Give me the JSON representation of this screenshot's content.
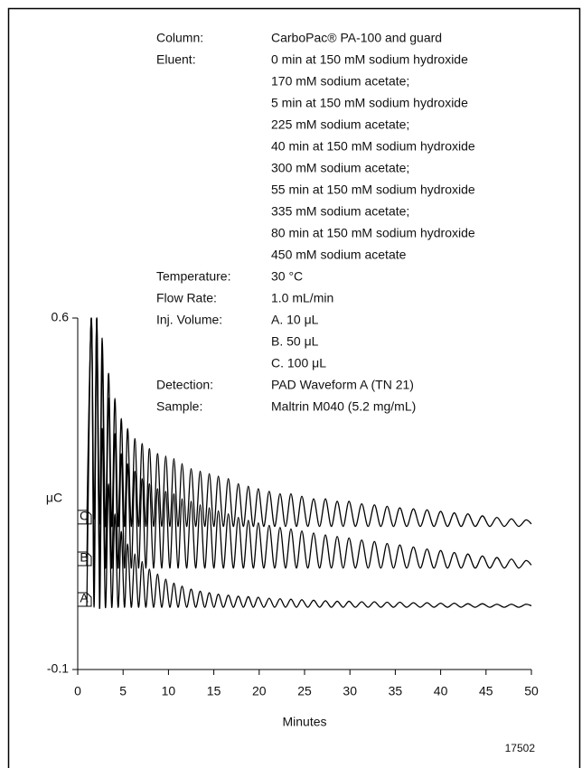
{
  "chart_data": {
    "type": "line",
    "xlabel": "Minutes",
    "ylabel": "μC",
    "figure_id": "17502",
    "xlim": [
      0,
      50
    ],
    "ylim": [
      -0.1,
      0.6
    ],
    "xticks": [
      0,
      5,
      10,
      15,
      20,
      25,
      30,
      35,
      40,
      45,
      50
    ],
    "yticks": [
      -0.1,
      0.6
    ],
    "color": "#000000",
    "conditions": [
      {
        "label": "Column:",
        "lines": [
          "CarboPac® PA-100 and guard"
        ]
      },
      {
        "label": "Eluent:",
        "lines": [
          "0 min at 150 mM sodium hydroxide",
          "170 mM sodium acetate;",
          "5 min at 150 mM sodium hydroxide",
          "225 mM sodium acetate;",
          "40 min at 150 mM sodium hydroxide",
          "300 mM sodium acetate;",
          "55 min at 150 mM sodium hydroxide",
          "335 mM sodium acetate;",
          "80 min at 150 mM sodium hydroxide",
          "450 mM sodium acetate"
        ]
      },
      {
        "label": "Temperature:",
        "lines": [
          "30 °C"
        ]
      },
      {
        "label": "Flow Rate:",
        "lines": [
          "1.0 mL/min"
        ]
      },
      {
        "label": "Inj. Volume:",
        "lines": [
          "A. 10 μL",
          "B. 50 μL",
          "C. 100 μL"
        ]
      },
      {
        "label": "Detection:",
        "lines": [
          "PAD Waveform A (TN 21)"
        ]
      },
      {
        "label": "Sample:",
        "lines": [
          "Maltrin M040 (5.2 mg/mL)"
        ]
      }
    ],
    "x": [
      1.0,
      1.5,
      1.8,
      2.1,
      2.4,
      2.7,
      3.05,
      3.4,
      3.75,
      4.1,
      4.45,
      4.8,
      5.15,
      5.5,
      5.9,
      6.3,
      6.7,
      7.1,
      7.5,
      7.9,
      8.35,
      8.8,
      9.25,
      9.7,
      10.15,
      10.6,
      11.05,
      11.5,
      12.0,
      12.5,
      13.0,
      13.5,
      14.0,
      14.5,
      15.0,
      15.5,
      16.05,
      16.6,
      17.15,
      17.7,
      18.25,
      18.8,
      19.35,
      19.9,
      20.5,
      21.1,
      21.7,
      22.3,
      22.9,
      23.5,
      24.1,
      24.7,
      25.35,
      26.0,
      26.65,
      27.3,
      27.95,
      28.6,
      29.25,
      29.9,
      30.6,
      31.3,
      32.0,
      32.7,
      33.4,
      34.1,
      34.8,
      35.5,
      36.25,
      37.0,
      37.75,
      38.5,
      39.25,
      40.0,
      40.75,
      41.5,
      42.25,
      43.0,
      43.8,
      44.6,
      45.4,
      46.2,
      47.0,
      47.8,
      48.6,
      49.4,
      50
    ],
    "series": [
      {
        "name": "A",
        "values": [
          0.026,
          0.6,
          0.024,
          0.6,
          0.024,
          0.38,
          0.024,
          0.27,
          0.024,
          0.21,
          0.024,
          0.175,
          0.024,
          0.15,
          0.024,
          0.13,
          0.024,
          0.115,
          0.024,
          0.1,
          0.024,
          0.09,
          0.024,
          0.08,
          0.024,
          0.072,
          0.024,
          0.066,
          0.024,
          0.06,
          0.024,
          0.056,
          0.024,
          0.053,
          0.024,
          0.05,
          0.024,
          0.048,
          0.024,
          0.046,
          0.024,
          0.045,
          0.024,
          0.044,
          0.024,
          0.042,
          0.024,
          0.041,
          0.024,
          0.04,
          0.024,
          0.039,
          0.024,
          0.038,
          0.024,
          0.037,
          0.024,
          0.036,
          0.024,
          0.036,
          0.024,
          0.035,
          0.024,
          0.035,
          0.024,
          0.034,
          0.024,
          0.034,
          0.024,
          0.033,
          0.024,
          0.033,
          0.024,
          0.032,
          0.024,
          0.032,
          0.024,
          0.031,
          0.024,
          0.031,
          0.024,
          0.03,
          0.024,
          0.03,
          0.024,
          0.03,
          0.027
        ]
      },
      {
        "name": "B",
        "values": [
          0.107,
          0.6,
          0.102,
          0.6,
          0.102,
          0.52,
          0.102,
          0.44,
          0.102,
          0.37,
          0.102,
          0.33,
          0.102,
          0.31,
          0.102,
          0.295,
          0.102,
          0.28,
          0.102,
          0.27,
          0.102,
          0.26,
          0.102,
          0.255,
          0.102,
          0.25,
          0.102,
          0.24,
          0.102,
          0.235,
          0.102,
          0.228,
          0.102,
          0.222,
          0.102,
          0.216,
          0.102,
          0.21,
          0.102,
          0.203,
          0.102,
          0.197,
          0.102,
          0.192,
          0.102,
          0.187,
          0.102,
          0.183,
          0.102,
          0.18,
          0.102,
          0.176,
          0.102,
          0.172,
          0.102,
          0.168,
          0.102,
          0.165,
          0.102,
          0.162,
          0.102,
          0.158,
          0.102,
          0.155,
          0.102,
          0.151,
          0.102,
          0.148,
          0.102,
          0.144,
          0.102,
          0.14,
          0.102,
          0.137,
          0.102,
          0.133,
          0.102,
          0.13,
          0.102,
          0.126,
          0.102,
          0.123,
          0.102,
          0.12,
          0.102,
          0.117,
          0.108
        ]
      },
      {
        "name": "C",
        "values": [
          0.19,
          0.6,
          0.2,
          0.6,
          0.19,
          0.56,
          0.185,
          0.49,
          0.185,
          0.44,
          0.185,
          0.4,
          0.185,
          0.38,
          0.185,
          0.36,
          0.185,
          0.35,
          0.185,
          0.34,
          0.185,
          0.33,
          0.185,
          0.325,
          0.185,
          0.32,
          0.185,
          0.31,
          0.185,
          0.3,
          0.185,
          0.295,
          0.185,
          0.29,
          0.185,
          0.285,
          0.185,
          0.28,
          0.185,
          0.27,
          0.185,
          0.265,
          0.185,
          0.26,
          0.185,
          0.255,
          0.185,
          0.25,
          0.185,
          0.25,
          0.185,
          0.245,
          0.185,
          0.24,
          0.185,
          0.24,
          0.185,
          0.235,
          0.185,
          0.235,
          0.185,
          0.23,
          0.185,
          0.228,
          0.185,
          0.225,
          0.185,
          0.222,
          0.185,
          0.22,
          0.185,
          0.218,
          0.185,
          0.215,
          0.185,
          0.212,
          0.185,
          0.21,
          0.185,
          0.206,
          0.185,
          0.203,
          0.185,
          0.2,
          0.185,
          0.198,
          0.19
        ]
      }
    ]
  }
}
